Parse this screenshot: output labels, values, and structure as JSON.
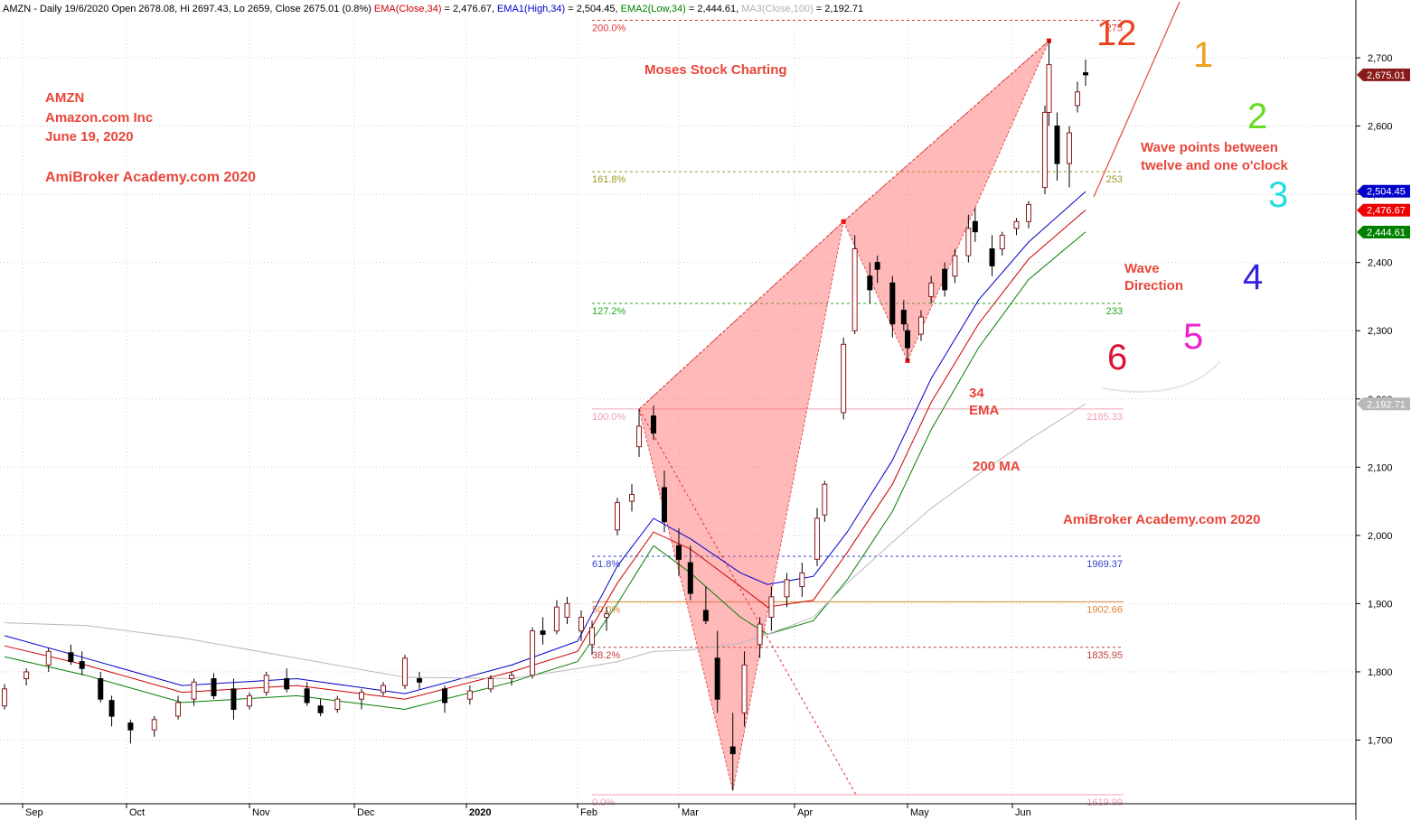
{
  "header": {
    "segments": [
      {
        "text": "AMZN - Daily 19/6/2020 Open 2678.08, Hi 2697.43, Lo 2659, Close 2675.01 (0.8%) ",
        "color": "#000000"
      },
      {
        "text": "EMA(Close,34)",
        "color": "#cc0000"
      },
      {
        "text": " = 2,476.67, ",
        "color": "#000000"
      },
      {
        "text": "EMA1(High,34)",
        "color": "#0000cc"
      },
      {
        "text": " = 2,504.45, ",
        "color": "#000000"
      },
      {
        "text": "EMA2(Low,34)",
        "color": "#008000"
      },
      {
        "text": " = 2,444.61, ",
        "color": "#000000"
      },
      {
        "text": "MA3(Close,100)",
        "color": "#b0b0b0"
      },
      {
        "text": " = 2,192.71",
        "color": "#000000"
      }
    ]
  },
  "annotations": {
    "ticker": "AMZN",
    "company": "Amazon.com Inc",
    "date": "June 19, 2020",
    "brand_left": "AmiBroker Academy.com 2020",
    "brand_top": "Moses Stock Charting",
    "brand_right": "AmiBroker Academy.com  2020",
    "ema_label_1": "34",
    "ema_label_2": "EMA",
    "ma_label": "200 MA",
    "wave_points_1": "Wave points between",
    "wave_points_2": "twelve and one o'clock",
    "wave_dir_1": "Wave",
    "wave_dir_2": "Direction",
    "red_color": "#e8463a"
  },
  "clock": [
    {
      "label": "12",
      "color": "#e8461e"
    },
    {
      "label": "1",
      "color": "#f0a020"
    },
    {
      "label": "2",
      "color": "#66dd22"
    },
    {
      "label": "3",
      "color": "#22dddd"
    },
    {
      "label": "4",
      "color": "#3322dd"
    },
    {
      "label": "5",
      "color": "#ee22cc"
    },
    {
      "label": "6",
      "color": "#dd1133"
    }
  ],
  "chart_data": {
    "type": "candlestick",
    "symbol": "AMZN",
    "ylim": [
      1610,
      2760
    ],
    "yticks": [
      1700,
      1800,
      1900,
      2000,
      2100,
      2200,
      2300,
      2400,
      2500,
      2600,
      2700
    ],
    "ytick_labels": [
      "1,700",
      "1,800",
      "1,900",
      "2,000",
      "2,100",
      "2,200",
      "2,300",
      "2,400",
      "2,500",
      "2,600",
      "2,700"
    ],
    "xlabels": [
      {
        "label": "Sep",
        "date": "2019-09-03"
      },
      {
        "label": "Oct",
        "date": "2019-10-01"
      },
      {
        "label": "Nov",
        "date": "2019-11-01"
      },
      {
        "label": "Dec",
        "date": "2019-12-02"
      },
      {
        "label": "2020",
        "date": "2020-01-02"
      },
      {
        "label": "Feb",
        "date": "2020-02-03"
      },
      {
        "label": "Mar",
        "date": "2020-03-02"
      },
      {
        "label": "Apr",
        "date": "2020-04-01"
      },
      {
        "label": "May",
        "date": "2020-05-01"
      },
      {
        "label": "Jun",
        "date": "2020-06-01"
      }
    ],
    "price_tags": [
      {
        "label": "2,675.01",
        "value": 2675.01,
        "color": "#8b1a1a"
      },
      {
        "label": "2,504.45",
        "value": 2504.45,
        "color": "#0000cc"
      },
      {
        "label": "2,476.67",
        "value": 2476.67,
        "color": "#ee0000"
      },
      {
        "label": "2,444.61",
        "value": 2444.61,
        "color": "#008000"
      },
      {
        "label": "2,192.71",
        "value": 2192.71,
        "color": "#b8b8b8"
      }
    ],
    "fib_levels": [
      {
        "left": "200.0%",
        "right": "275",
        "value": 2755,
        "color": "#dd3333",
        "dash": true
      },
      {
        "left": "161.8%",
        "right": "253",
        "value": 2533,
        "color": "#9a9a20",
        "dash": true
      },
      {
        "left": "127.2%",
        "right": "233",
        "value": 2340,
        "color": "#22aa22",
        "dash": true
      },
      {
        "left": "100.0%",
        "right": "2185.33",
        "value": 2185.33,
        "color": "#f0a0b0",
        "dash": false
      },
      {
        "left": "61.8%",
        "right": "1969.37",
        "value": 1969.37,
        "color": "#3344cc",
        "dash": true
      },
      {
        "left": "50.0%",
        "right": "1902.66",
        "value": 1902.66,
        "color": "#e08030",
        "dash": false
      },
      {
        "left": "38.2%",
        "right": "1835.95",
        "value": 1835.95,
        "color": "#c04040",
        "dash": true
      },
      {
        "left": "0.0%",
        "right": "1619.99",
        "value": 1619.99,
        "color": "#f0a0b0",
        "dash": false
      }
    ],
    "pattern_points": [
      {
        "date": "2020-02-20",
        "price": 2185
      },
      {
        "date": "2020-03-16",
        "price": 1626
      },
      {
        "date": "2020-04-14",
        "price": 2460
      },
      {
        "date": "2020-05-01",
        "price": 2256
      },
      {
        "date": "2020-06-10",
        "price": 2725
      }
    ],
    "series": [
      {
        "name": "EMA1(High,34)",
        "color": "#0000cc",
        "points": [
          [
            "2019-08-29",
            1853
          ],
          [
            "2019-09-20",
            1820
          ],
          [
            "2019-10-15",
            1780
          ],
          [
            "2019-11-15",
            1790
          ],
          [
            "2019-12-16",
            1768
          ],
          [
            "2020-01-15",
            1810
          ],
          [
            "2020-02-03",
            1845
          ],
          [
            "2020-02-14",
            1955
          ],
          [
            "2020-02-24",
            2025
          ],
          [
            "2020-03-05",
            1995
          ],
          [
            "2020-03-18",
            1945
          ],
          [
            "2020-03-25",
            1928
          ],
          [
            "2020-04-06",
            1940
          ],
          [
            "2020-04-15",
            2005
          ],
          [
            "2020-04-27",
            2110
          ],
          [
            "2020-05-08",
            2230
          ],
          [
            "2020-05-22",
            2345
          ],
          [
            "2020-06-05",
            2430
          ],
          [
            "2020-06-19",
            2504
          ]
        ]
      },
      {
        "name": "EMA(Close,34)",
        "color": "#cc0000",
        "points": [
          [
            "2019-08-29",
            1838
          ],
          [
            "2019-09-20",
            1810
          ],
          [
            "2019-10-15",
            1770
          ],
          [
            "2019-11-15",
            1780
          ],
          [
            "2019-12-16",
            1760
          ],
          [
            "2020-01-15",
            1800
          ],
          [
            "2020-02-03",
            1830
          ],
          [
            "2020-02-14",
            1930
          ],
          [
            "2020-02-24",
            2005
          ],
          [
            "2020-03-05",
            1980
          ],
          [
            "2020-03-18",
            1925
          ],
          [
            "2020-03-25",
            1895
          ],
          [
            "2020-04-06",
            1905
          ],
          [
            "2020-04-15",
            1975
          ],
          [
            "2020-04-27",
            2075
          ],
          [
            "2020-05-08",
            2195
          ],
          [
            "2020-05-22",
            2310
          ],
          [
            "2020-06-05",
            2405
          ],
          [
            "2020-06-19",
            2477
          ]
        ]
      },
      {
        "name": "EMA2(Low,34)",
        "color": "#008000",
        "points": [
          [
            "2019-08-29",
            1822
          ],
          [
            "2019-09-20",
            1795
          ],
          [
            "2019-10-15",
            1755
          ],
          [
            "2019-11-15",
            1765
          ],
          [
            "2019-12-16",
            1745
          ],
          [
            "2020-01-15",
            1785
          ],
          [
            "2020-02-03",
            1815
          ],
          [
            "2020-02-14",
            1900
          ],
          [
            "2020-02-24",
            1985
          ],
          [
            "2020-03-05",
            1945
          ],
          [
            "2020-03-18",
            1880
          ],
          [
            "2020-03-25",
            1855
          ],
          [
            "2020-04-06",
            1875
          ],
          [
            "2020-04-15",
            1935
          ],
          [
            "2020-04-27",
            2035
          ],
          [
            "2020-05-08",
            2155
          ],
          [
            "2020-05-22",
            2275
          ],
          [
            "2020-06-05",
            2375
          ],
          [
            "2020-06-19",
            2445
          ]
        ]
      },
      {
        "name": "MA3(Close,100)",
        "color": "#b8b8b8",
        "points": [
          [
            "2019-08-29",
            1872
          ],
          [
            "2019-09-20",
            1868
          ],
          [
            "2019-10-15",
            1850
          ],
          [
            "2019-11-15",
            1820
          ],
          [
            "2019-12-16",
            1792
          ],
          [
            "2020-01-15",
            1790
          ],
          [
            "2020-02-03",
            1805
          ],
          [
            "2020-02-14",
            1815
          ],
          [
            "2020-02-24",
            1830
          ],
          [
            "2020-03-05",
            1832
          ],
          [
            "2020-03-18",
            1842
          ],
          [
            "2020-03-25",
            1855
          ],
          [
            "2020-04-06",
            1880
          ],
          [
            "2020-04-15",
            1930
          ],
          [
            "2020-04-27",
            1990
          ],
          [
            "2020-05-08",
            2040
          ],
          [
            "2020-05-22",
            2090
          ],
          [
            "2020-06-05",
            2140
          ],
          [
            "2020-06-19",
            2193
          ]
        ]
      }
    ],
    "candles": [
      [
        "2019-08-29",
        1750,
        1782,
        1745,
        1775
      ],
      [
        "2019-09-04",
        1790,
        1805,
        1780,
        1800
      ],
      [
        "2019-09-10",
        1810,
        1835,
        1800,
        1830
      ],
      [
        "2019-09-16",
        1828,
        1840,
        1810,
        1815
      ],
      [
        "2019-09-19",
        1815,
        1830,
        1795,
        1805
      ],
      [
        "2019-09-24",
        1790,
        1800,
        1755,
        1760
      ],
      [
        "2019-09-27",
        1758,
        1765,
        1720,
        1735
      ],
      [
        "2019-10-02",
        1725,
        1730,
        1695,
        1715
      ],
      [
        "2019-10-08",
        1715,
        1735,
        1705,
        1730
      ],
      [
        "2019-10-14",
        1735,
        1765,
        1730,
        1755
      ],
      [
        "2019-10-18",
        1760,
        1790,
        1750,
        1785
      ],
      [
        "2019-10-23",
        1790,
        1798,
        1760,
        1765
      ],
      [
        "2019-10-28",
        1775,
        1790,
        1730,
        1745
      ],
      [
        "2019-11-01",
        1750,
        1770,
        1745,
        1765
      ],
      [
        "2019-11-06",
        1770,
        1800,
        1765,
        1795
      ],
      [
        "2019-11-12",
        1790,
        1805,
        1770,
        1775
      ],
      [
        "2019-11-18",
        1775,
        1785,
        1750,
        1755
      ],
      [
        "2019-11-22",
        1750,
        1760,
        1735,
        1740
      ],
      [
        "2019-11-27",
        1745,
        1765,
        1740,
        1760
      ],
      [
        "2019-12-04",
        1760,
        1775,
        1745,
        1770
      ],
      [
        "2019-12-10",
        1770,
        1785,
        1765,
        1780
      ],
      [
        "2019-12-16",
        1780,
        1825,
        1775,
        1820
      ],
      [
        "2019-12-20",
        1790,
        1800,
        1775,
        1785
      ],
      [
        "2019-12-27",
        1775,
        1780,
        1740,
        1755
      ],
      [
        "2020-01-03",
        1760,
        1780,
        1752,
        1772
      ],
      [
        "2020-01-09",
        1775,
        1795,
        1770,
        1790
      ],
      [
        "2020-01-15",
        1790,
        1800,
        1780,
        1795
      ],
      [
        "2020-01-21",
        1795,
        1865,
        1790,
        1860
      ],
      [
        "2020-01-24",
        1860,
        1880,
        1840,
        1855
      ],
      [
        "2020-01-28",
        1860,
        1905,
        1855,
        1895
      ],
      [
        "2020-01-31",
        1880,
        1910,
        1870,
        1900
      ],
      [
        "2020-02-04",
        1860,
        1890,
        1845,
        1880
      ],
      [
        "2020-02-07",
        1840,
        1875,
        1825,
        1865
      ],
      [
        "2020-02-11",
        1880,
        1895,
        1860,
        1885
      ],
      [
        "2020-02-14",
        2008,
        2055,
        2000,
        2048
      ],
      [
        "2020-02-18",
        2050,
        2075,
        2035,
        2060
      ],
      [
        "2020-02-20",
        2130,
        2185,
        2115,
        2160
      ],
      [
        "2020-02-24",
        2175,
        2190,
        2140,
        2150
      ],
      [
        "2020-02-27",
        2070,
        2095,
        2005,
        2020
      ],
      [
        "2020-03-02",
        1985,
        2010,
        1940,
        1965
      ],
      [
        "2020-03-05",
        1960,
        1985,
        1905,
        1915
      ],
      [
        "2020-03-09",
        1890,
        1925,
        1870,
        1875
      ],
      [
        "2020-03-12",
        1820,
        1860,
        1740,
        1760
      ],
      [
        "2020-03-16",
        1690,
        1740,
        1626,
        1680
      ],
      [
        "2020-03-19",
        1740,
        1830,
        1720,
        1810
      ],
      [
        "2020-03-23",
        1840,
        1880,
        1820,
        1870
      ],
      [
        "2020-03-26",
        1880,
        1925,
        1860,
        1910
      ],
      [
        "2020-03-30",
        1910,
        1945,
        1895,
        1935
      ],
      [
        "2020-04-03",
        1925,
        1960,
        1910,
        1945
      ],
      [
        "2020-04-07",
        1965,
        2040,
        1955,
        2025
      ],
      [
        "2020-04-09",
        2030,
        2080,
        2020,
        2075
      ],
      [
        "2020-04-14",
        2180,
        2290,
        2170,
        2280
      ],
      [
        "2020-04-17",
        2300,
        2440,
        2295,
        2420
      ],
      [
        "2020-04-21",
        2380,
        2400,
        2340,
        2360
      ],
      [
        "2020-04-23",
        2400,
        2410,
        2370,
        2390
      ],
      [
        "2020-04-27",
        2370,
        2380,
        2290,
        2310
      ],
      [
        "2020-04-30",
        2330,
        2345,
        2300,
        2310
      ],
      [
        "2020-05-01",
        2300,
        2310,
        2256,
        2275
      ],
      [
        "2020-05-05",
        2295,
        2330,
        2285,
        2320
      ],
      [
        "2020-05-08",
        2350,
        2380,
        2340,
        2370
      ],
      [
        "2020-05-12",
        2390,
        2400,
        2350,
        2360
      ],
      [
        "2020-05-15",
        2380,
        2420,
        2370,
        2410
      ],
      [
        "2020-05-19",
        2410,
        2470,
        2400,
        2450
      ],
      [
        "2020-05-21",
        2460,
        2480,
        2430,
        2445
      ],
      [
        "2020-05-26",
        2420,
        2440,
        2380,
        2395
      ],
      [
        "2020-05-29",
        2420,
        2445,
        2410,
        2440
      ],
      [
        "2020-06-02",
        2450,
        2465,
        2440,
        2460
      ],
      [
        "2020-06-05",
        2460,
        2490,
        2450,
        2485
      ],
      [
        "2020-06-09",
        2510,
        2630,
        2500,
        2620
      ],
      [
        "2020-06-10",
        2620,
        2725,
        2600,
        2690
      ],
      [
        "2020-06-12",
        2600,
        2620,
        2520,
        2545
      ],
      [
        "2020-06-15",
        2545,
        2600,
        2510,
        2590
      ],
      [
        "2020-06-17",
        2630,
        2665,
        2620,
        2650
      ],
      [
        "2020-06-19",
        2678.08,
        2697.43,
        2659,
        2675.01
      ]
    ]
  }
}
